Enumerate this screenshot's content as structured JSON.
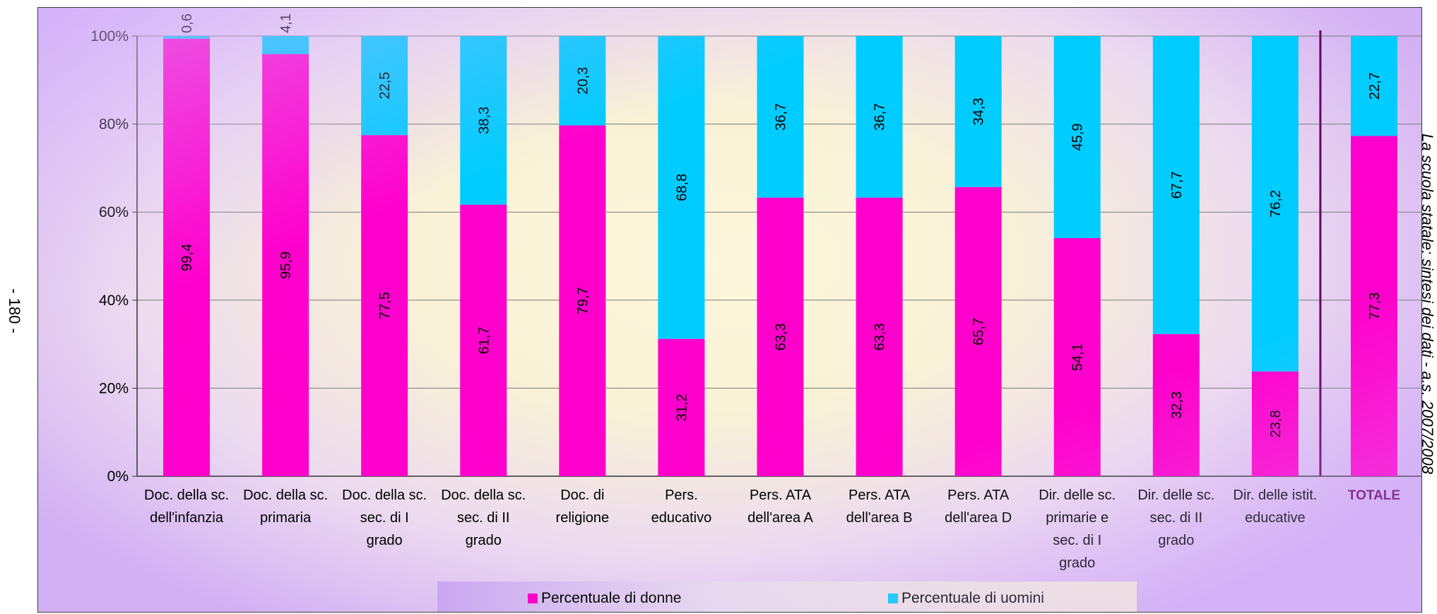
{
  "page_number": "- 180 -",
  "side_caption": "La scuola statale: sintesi dei dati - a.s. 2007/2008",
  "colors": {
    "donne": "#ff00cc",
    "uomini": "#00ccff",
    "separator": "#660066",
    "totale_label": "#660066"
  },
  "chart_data": {
    "type": "bar",
    "stacked": "percent",
    "title": "",
    "xlabel": "",
    "ylabel": "",
    "ylim": [
      0,
      100
    ],
    "yticks": [
      "0%",
      "20%",
      "40%",
      "60%",
      "80%",
      "100%"
    ],
    "grid": true,
    "legend_position": "bottom",
    "categories": [
      [
        "Doc. della sc.",
        "dell'infanzia"
      ],
      [
        "Doc. della sc.",
        "primaria"
      ],
      [
        "Doc. della sc.",
        "sec. di I",
        "grado"
      ],
      [
        "Doc. della sc.",
        "sec. di II",
        "grado"
      ],
      [
        "Doc. di",
        "religione"
      ],
      [
        "Pers.",
        "educativo"
      ],
      [
        "Pers. ATA",
        "dell'area A"
      ],
      [
        "Pers. ATA",
        "dell'area B"
      ],
      [
        "Pers. ATA",
        "dell'area D"
      ],
      [
        "Dir. delle sc.",
        "primarie e",
        "sec. di I",
        "grado"
      ],
      [
        "Dir. delle sc.",
        "sec. di II",
        "grado"
      ],
      [
        "Dir. delle istit.",
        "educative"
      ],
      [
        "TOTALE"
      ]
    ],
    "series": [
      {
        "name": "Percentuale di donne",
        "values": [
          99.4,
          95.9,
          77.5,
          61.7,
          79.7,
          31.2,
          63.3,
          63.3,
          65.7,
          54.1,
          32.3,
          23.8,
          77.3
        ],
        "labels": [
          "99,4",
          "95,9",
          "77,5",
          "61,7",
          "79,7",
          "31,2",
          "63,3",
          "63,3",
          "65,7",
          "54,1",
          "32,3",
          "23,8",
          "77,3"
        ]
      },
      {
        "name": "Percentuale di uomini",
        "values": [
          0.6,
          4.1,
          22.5,
          38.3,
          20.3,
          68.8,
          36.7,
          36.7,
          34.3,
          45.9,
          67.7,
          76.2,
          22.7
        ],
        "labels": [
          "0,6",
          "4,1",
          "22,5",
          "38,3",
          "20,3",
          "68,8",
          "36,7",
          "36,7",
          "34,3",
          "45,9",
          "67,7",
          "76,2",
          "22,7"
        ]
      }
    ]
  }
}
